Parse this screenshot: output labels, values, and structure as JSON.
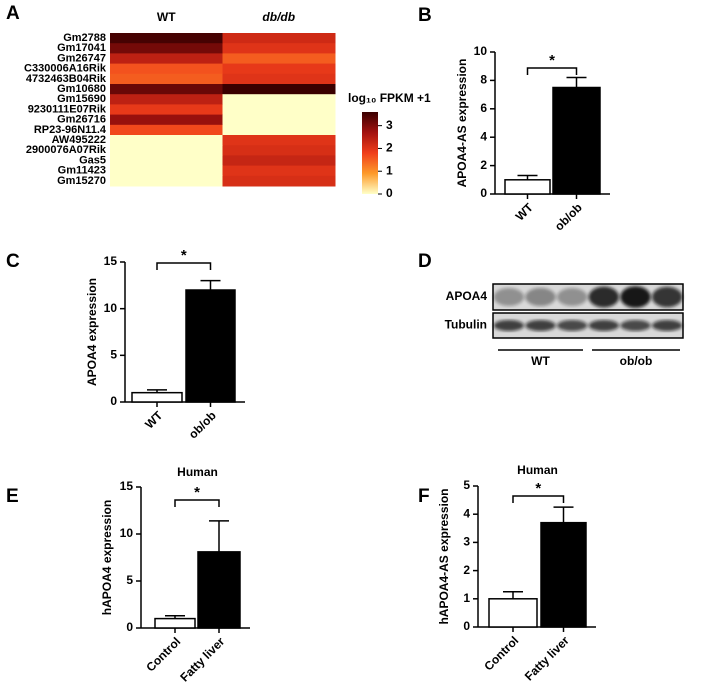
{
  "chart_data": [
    {
      "panel": "A",
      "type": "heatmap",
      "columns": [
        "WT",
        "db/db"
      ],
      "rows": [
        "Gm2788",
        "Gm17041",
        "Gm26747",
        "C330006A16Rik",
        "4732463B04Rik",
        "Gm10680",
        "Gm15690",
        "9230111E07Rik",
        "Gm26716",
        "RP23-96N11.4",
        "AW495222",
        "2900076A07Rik",
        "Gas5",
        "Gm11423",
        "Gm15270"
      ],
      "values": [
        [
          3.5,
          2.2
        ],
        [
          3.1,
          2.0
        ],
        [
          2.4,
          1.5
        ],
        [
          1.6,
          1.9
        ],
        [
          1.5,
          2.0
        ],
        [
          3.2,
          3.6
        ],
        [
          2.4,
          0
        ],
        [
          1.9,
          0
        ],
        [
          2.8,
          0
        ],
        [
          1.7,
          0
        ],
        [
          0,
          2.0
        ],
        [
          0,
          2.1
        ],
        [
          0,
          2.3
        ],
        [
          0,
          2.0
        ],
        [
          0,
          2.1
        ]
      ],
      "colorbar_label": "log₁₀ FPKM +1",
      "clim": [
        0,
        3.6
      ],
      "cticks": [
        0,
        1,
        2,
        3
      ],
      "colormap": [
        "#ffffc8",
        "#fd9a2a",
        "#f03e1a",
        "#a3120f",
        "#3a0000"
      ]
    },
    {
      "panel": "B",
      "type": "bar",
      "ylabel": "APOA4-AS expression",
      "categories": [
        "WT",
        "ob/ob"
      ],
      "values": [
        1,
        7.5
      ],
      "errors": [
        0.3,
        0.7
      ],
      "colors": [
        "#ffffff",
        "#000000"
      ],
      "ylim": [
        0,
        10
      ],
      "yticks": [
        0,
        2,
        4,
        6,
        8,
        10
      ],
      "annotation": "*"
    },
    {
      "panel": "C",
      "type": "bar",
      "ylabel": "APOA4 expression",
      "categories": [
        "WT",
        "ob/ob"
      ],
      "values": [
        1,
        12
      ],
      "errors": [
        0.3,
        1
      ],
      "colors": [
        "#ffffff",
        "#000000"
      ],
      "ylim": [
        0,
        15
      ],
      "yticks": [
        0,
        5,
        10,
        15
      ],
      "annotation": "*"
    },
    {
      "panel": "D",
      "type": "blot",
      "bands": [
        "APOA4",
        "Tubulin"
      ],
      "groups": [
        "WT",
        "ob/ob"
      ]
    },
    {
      "panel": "E",
      "type": "bar",
      "title": "Human",
      "ylabel": "hAPOA4 expression",
      "categories": [
        "Control",
        "Fatty liver"
      ],
      "values": [
        1,
        8.1
      ],
      "errors": [
        0.3,
        3.3
      ],
      "colors": [
        "#ffffff",
        "#000000"
      ],
      "ylim": [
        0,
        15
      ],
      "yticks": [
        0,
        5,
        10,
        15
      ],
      "annotation": "*"
    },
    {
      "panel": "F",
      "type": "bar",
      "title": "Human",
      "ylabel": "hAPOA4-AS expression",
      "categories": [
        "Control",
        "Fatty liver"
      ],
      "values": [
        1,
        3.7
      ],
      "errors": [
        0.25,
        0.55
      ],
      "colors": [
        "#ffffff",
        "#000000"
      ],
      "ylim": [
        0,
        5
      ],
      "yticks": [
        0,
        1,
        2,
        3,
        4,
        5
      ],
      "annotation": "*"
    }
  ]
}
